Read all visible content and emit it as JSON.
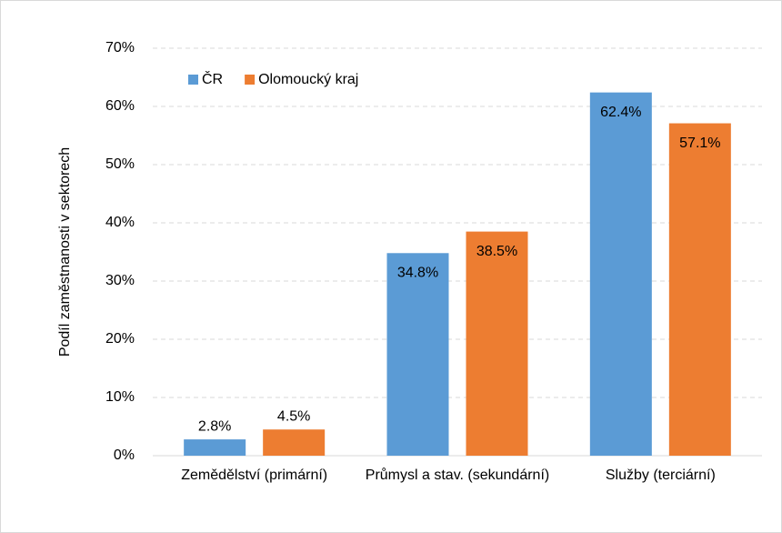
{
  "chart_data": {
    "type": "bar",
    "y_label": "Podíl zaměstnanosti v sektorech",
    "categories": [
      "Zemědělství (primární)",
      "Průmysl a stav. (sekundární)",
      "Služby (terciární)"
    ],
    "series": [
      {
        "name": "ČR",
        "color": "#5b9bd5",
        "values": [
          2.8,
          34.8,
          62.4
        ],
        "value_labels": [
          "2.8%",
          "34.8%",
          "62.4%"
        ]
      },
      {
        "name": "Olomoucký kraj",
        "color": "#ed7d31",
        "values": [
          4.5,
          38.5,
          57.1
        ],
        "value_labels": [
          "4.5%",
          "38.5%",
          "57.1%"
        ]
      }
    ],
    "ylim": [
      0,
      70
    ],
    "yticks": [
      {
        "value": 0,
        "label": "0%"
      },
      {
        "value": 10,
        "label": "10%"
      },
      {
        "value": 20,
        "label": "20%"
      },
      {
        "value": 30,
        "label": "30%"
      },
      {
        "value": 40,
        "label": "40%"
      },
      {
        "value": 50,
        "label": "50%"
      },
      {
        "value": 60,
        "label": "60%"
      },
      {
        "value": 70,
        "label": "70%"
      }
    ],
    "grid": true,
    "legend": "top-left"
  }
}
